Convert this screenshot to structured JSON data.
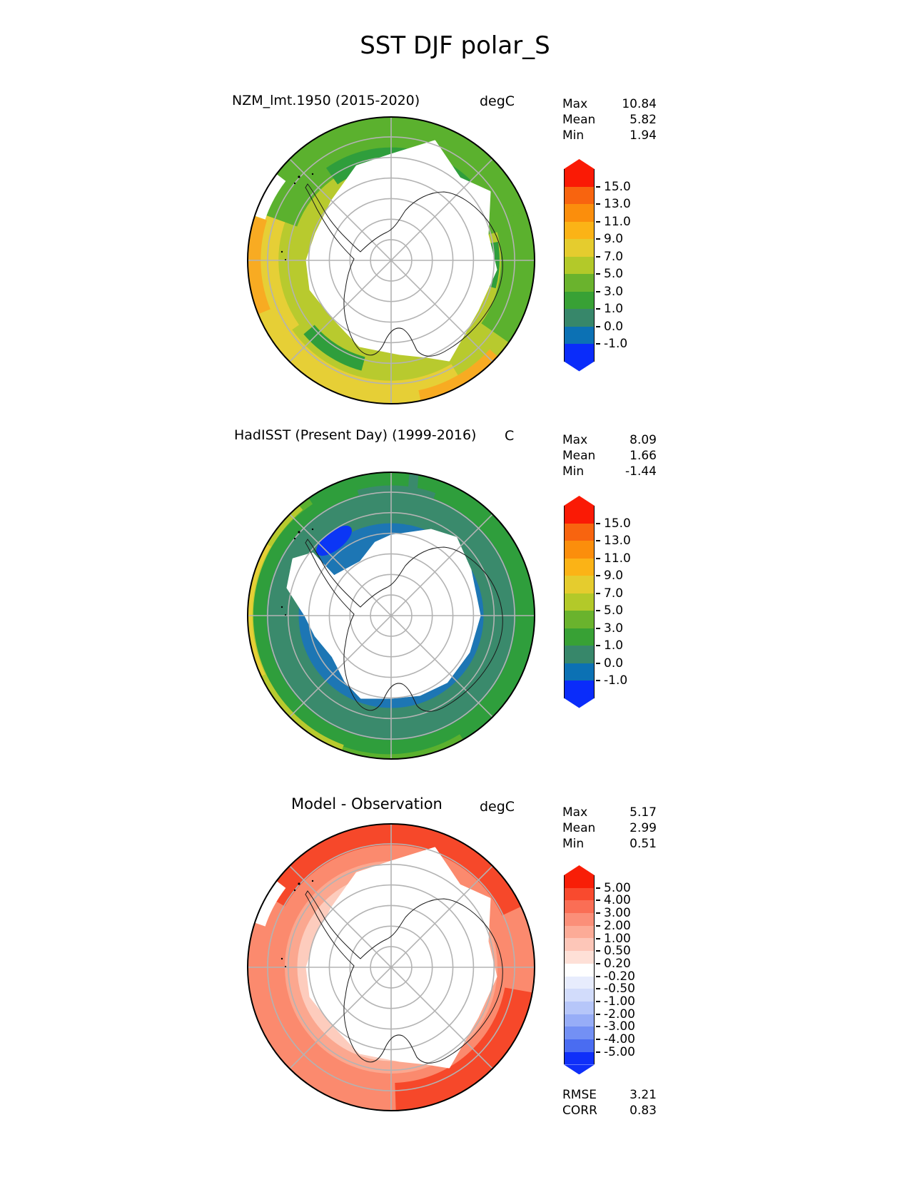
{
  "title": "SST DJF polar_S",
  "panels": [
    {
      "title": "NZM_lmt.1950 (2015-2020)",
      "unit": "degC",
      "stats": [
        {
          "label": "Max",
          "value": "10.84"
        },
        {
          "label": "Mean",
          "value": "5.82"
        },
        {
          "label": "Min",
          "value": "1.94"
        }
      ]
    },
    {
      "title": "HadISST (Present Day) (1999-2016)",
      "unit": "C",
      "stats": [
        {
          "label": "Max",
          "value": "8.09"
        },
        {
          "label": "Mean",
          "value": "1.66"
        },
        {
          "label": "Min",
          "value": "-1.44"
        }
      ]
    },
    {
      "title": "Model - Observation",
      "unit": "degC",
      "stats": [
        {
          "label": "Max",
          "value": "5.17"
        },
        {
          "label": "Mean",
          "value": "2.99"
        },
        {
          "label": "Min",
          "value": "0.51"
        }
      ],
      "metrics": [
        {
          "label": "RMSE",
          "value": "3.21"
        },
        {
          "label": "CORR",
          "value": "0.83"
        }
      ]
    }
  ],
  "colorbars": [
    {
      "ticks": [
        "15.0",
        "13.0",
        "11.0",
        "9.0",
        "7.0",
        "5.0",
        "3.0",
        "1.0",
        "0.0",
        "-1.0"
      ],
      "segments": [
        "#fa1a05",
        "#f8640f",
        "#fb8e0c",
        "#fbb316",
        "#e5cc2e",
        "#b3c929",
        "#6ab32d",
        "#38a135",
        "#37876a",
        "#0c71b4",
        "#0a2cfa"
      ]
    },
    {
      "ticks": [
        "15.0",
        "13.0",
        "11.0",
        "9.0",
        "7.0",
        "5.0",
        "3.0",
        "1.0",
        "0.0",
        "-1.0"
      ],
      "segments": [
        "#fa1a05",
        "#f8640f",
        "#fb8e0c",
        "#fbb316",
        "#e5cc2e",
        "#b3c929",
        "#6ab32d",
        "#38a135",
        "#37876a",
        "#0c71b4",
        "#0a2cfa"
      ]
    },
    {
      "ticks": [
        "5.00",
        "4.00",
        "3.00",
        "2.00",
        "1.00",
        "0.50",
        "0.20",
        "-0.20",
        "-0.50",
        "-1.00",
        "-2.00",
        "-3.00",
        "-4.00",
        "-5.00"
      ],
      "segments": [
        "#f81e07",
        "#f94a2e",
        "#fa6e55",
        "#fb8f79",
        "#fcab97",
        "#fdc6b8",
        "#fee0d7",
        "#ffffff",
        "#e7ecfd",
        "#d2dcfb",
        "#b6c6f9",
        "#97adf7",
        "#7390f4",
        "#4a6cf1",
        "#0f2ff9"
      ]
    }
  ],
  "chart_data": [
    {
      "type": "heatmap",
      "title": "NZM_lmt.1950 (2015-2020)",
      "units": "degC",
      "projection": "south polar map of Antarctica / Southern Ocean",
      "levels": [
        -1.0,
        0.0,
        1.0,
        3.0,
        5.0,
        7.0,
        9.0,
        11.0,
        13.0,
        15.0
      ],
      "colors_top_to_bottom": [
        "#fa1a05",
        "#f8640f",
        "#fb8e0c",
        "#fbb316",
        "#e5cc2e",
        "#b3c929",
        "#6ab32d",
        "#38a135",
        "#37876a",
        "#0c71b4",
        "#0a2cfa"
      ],
      "colorbar_extend": "both",
      "stats": {
        "max": 10.84,
        "mean": 5.82,
        "min": 1.94
      }
    },
    {
      "type": "heatmap",
      "title": "HadISST (Present Day) (1999-2016)",
      "units": "C",
      "projection": "south polar map of Antarctica / Southern Ocean",
      "levels": [
        -1.0,
        0.0,
        1.0,
        3.0,
        5.0,
        7.0,
        9.0,
        11.0,
        13.0,
        15.0
      ],
      "colors_top_to_bottom": [
        "#fa1a05",
        "#f8640f",
        "#fb8e0c",
        "#fbb316",
        "#e5cc2e",
        "#b3c929",
        "#6ab32d",
        "#38a135",
        "#37876a",
        "#0c71b4",
        "#0a2cfa"
      ],
      "colorbar_extend": "both",
      "stats": {
        "max": 8.09,
        "mean": 1.66,
        "min": -1.44
      }
    },
    {
      "type": "heatmap",
      "title": "Model - Observation",
      "units": "degC",
      "projection": "south polar map of Antarctica / Southern Ocean",
      "levels": [
        -5.0,
        -4.0,
        -3.0,
        -2.0,
        -1.0,
        -0.5,
        -0.2,
        0.2,
        0.5,
        1.0,
        2.0,
        3.0,
        4.0,
        5.0
      ],
      "colors_top_to_bottom": [
        "#f81e07",
        "#f94a2e",
        "#fa6e55",
        "#fb8f79",
        "#fcab97",
        "#fdc6b8",
        "#fee0d7",
        "#ffffff",
        "#e7ecfd",
        "#d2dcfb",
        "#b6c6f9",
        "#97adf7",
        "#7390f4",
        "#4a6cf1",
        "#0f2ff9"
      ],
      "colorbar_extend": "both",
      "stats": {
        "max": 5.17,
        "mean": 2.99,
        "min": 0.51
      },
      "metrics": {
        "RMSE": 3.21,
        "CORR": 0.83
      }
    }
  ]
}
